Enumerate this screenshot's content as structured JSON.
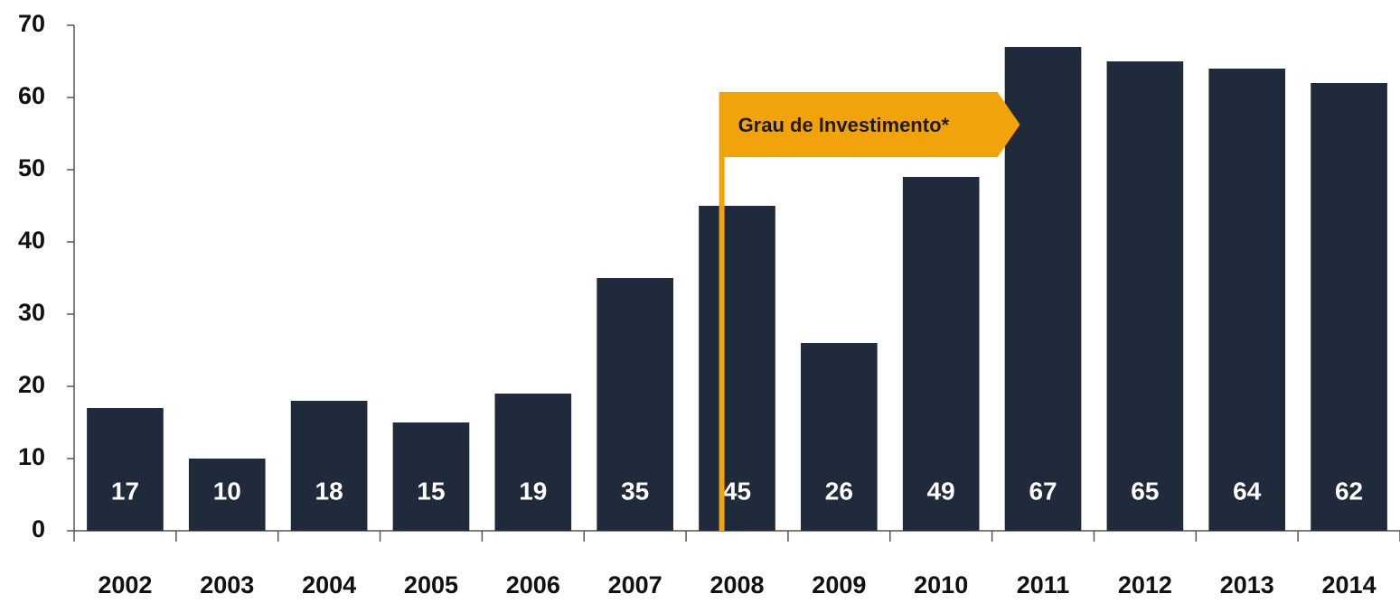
{
  "chart_data": {
    "type": "bar",
    "categories": [
      "2002",
      "2003",
      "2004",
      "2005",
      "2006",
      "2007",
      "2008",
      "2009",
      "2010",
      "2011",
      "2012",
      "2013",
      "2014"
    ],
    "values": [
      17,
      10,
      18,
      15,
      19,
      35,
      45,
      26,
      49,
      67,
      65,
      64,
      62
    ],
    "color": "#1f2a3a",
    "ylim": [
      0,
      70
    ],
    "yticks": [
      0,
      10,
      20,
      30,
      40,
      50,
      60,
      70
    ],
    "grid": false,
    "annotation": {
      "text": "Grau de Investimento*",
      "category": "2008",
      "color": "#f0a30a"
    }
  }
}
